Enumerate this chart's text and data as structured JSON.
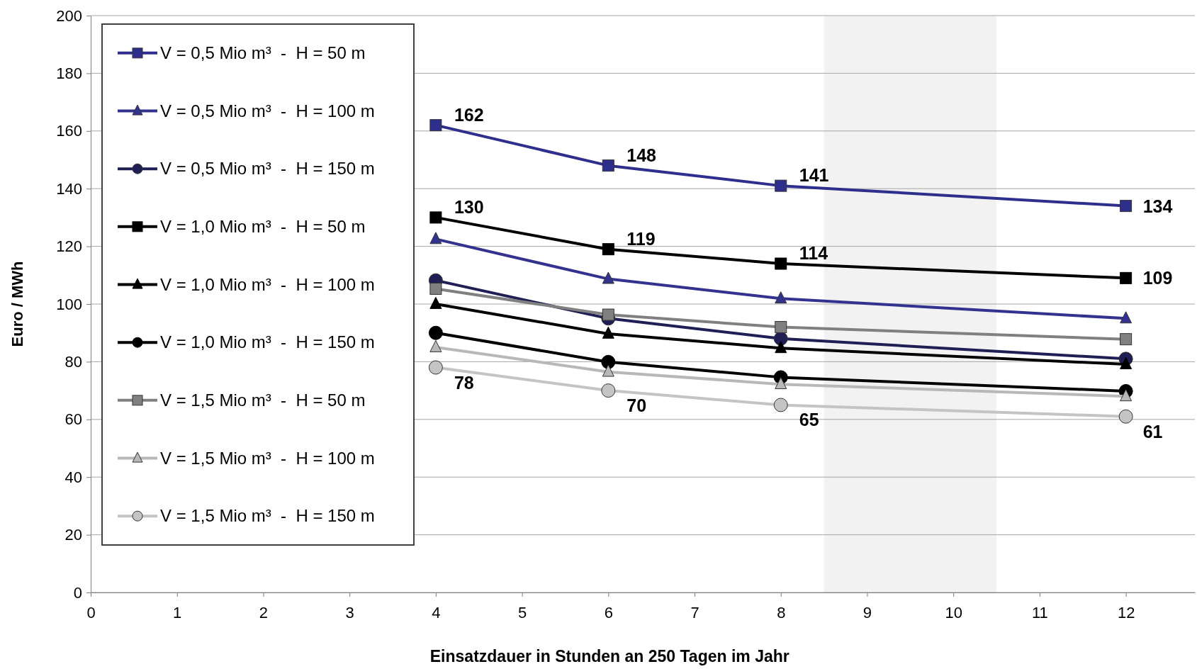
{
  "chart_data": {
    "type": "line",
    "xlabel": "Einsatzdauer in Stunden an 250 Tagen im Jahr",
    "ylabel": "Euro / MWh",
    "x": [
      4,
      6,
      8,
      12
    ],
    "xlim": [
      0,
      12.8
    ],
    "xticks": [
      0,
      1,
      2,
      3,
      4,
      5,
      6,
      7,
      8,
      9,
      10,
      11,
      12
    ],
    "ylim": [
      0,
      200
    ],
    "yticks": [
      0,
      20,
      40,
      60,
      80,
      100,
      120,
      140,
      160,
      180,
      200
    ],
    "grid": "y",
    "legend": "top left",
    "bands": [
      {
        "axis": "x",
        "from": 8.5,
        "to": 10.5,
        "color": "#f2f2f2"
      }
    ],
    "series": [
      {
        "name": "V = 0,5 Mio m³  -  H = 50 m",
        "color": "#2e2e8c",
        "marker": "square",
        "values": [
          162,
          148,
          141,
          134
        ],
        "value_labels": [
          "162",
          "148",
          "141",
          "134"
        ]
      },
      {
        "name": "V = 0,5 Mio m³  -  H = 100 m",
        "color": "#33338f",
        "marker": "triangle",
        "values": [
          122.5,
          108.7,
          101.9,
          95
        ],
        "value_labels": [
          null,
          null,
          null,
          null
        ]
      },
      {
        "name": "V = 0,5 Mio m³  -  H = 150 m",
        "color": "#1f1f55",
        "marker": "circle",
        "values": [
          108.2,
          95,
          88,
          81
        ],
        "value_labels": [
          null,
          null,
          null,
          null
        ]
      },
      {
        "name": "V = 1,0 Mio m³  -  H = 50 m",
        "color": "#000000",
        "marker": "square",
        "values": [
          130,
          119,
          114,
          109
        ],
        "value_labels": [
          "130",
          "119",
          "114",
          "109"
        ]
      },
      {
        "name": "V = 1,0 Mio m³  -  H = 100 m",
        "color": "#000000",
        "marker": "triangle",
        "values": [
          100,
          89.7,
          84.7,
          79.1
        ],
        "value_labels": [
          null,
          null,
          null,
          null
        ]
      },
      {
        "name": "V = 1,0 Mio m³  -  H = 150 m",
        "color": "#000000",
        "marker": "circle",
        "values": [
          90,
          79.9,
          74.6,
          69.8
        ],
        "value_labels": [
          null,
          null,
          null,
          null
        ]
      },
      {
        "name": "V = 1,5 Mio m³  -  H = 50 m",
        "color": "#808080",
        "marker": "square",
        "values": [
          105.3,
          96.3,
          92,
          87.8
        ],
        "value_labels": [
          null,
          null,
          null,
          null
        ]
      },
      {
        "name": "V = 1,5 Mio m³  -  H = 100 m",
        "color": "#b8b8b8",
        "marker": "triangle",
        "values": [
          85,
          76.5,
          72.2,
          68
        ],
        "value_labels": [
          null,
          null,
          null,
          null
        ]
      },
      {
        "name": "V = 1,5 Mio m³  -  H = 150 m",
        "color": "#c4c4c4",
        "marker": "circle",
        "values": [
          78,
          70,
          65,
          61
        ],
        "value_labels": [
          "78",
          "70",
          "65",
          "61"
        ]
      }
    ]
  }
}
